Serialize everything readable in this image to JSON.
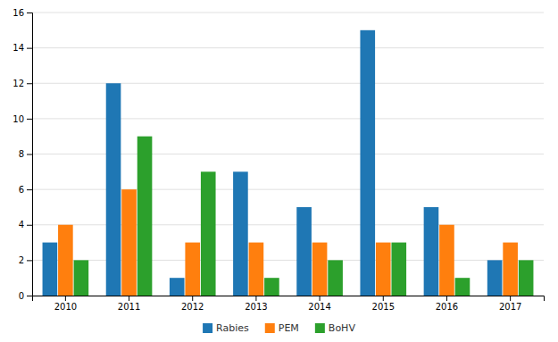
{
  "chart_data": {
    "type": "bar",
    "categories": [
      "2010",
      "2011",
      "2012",
      "2013",
      "2014",
      "2015",
      "2016",
      "2017"
    ],
    "series": [
      {
        "name": "Rabies",
        "values": [
          3,
          12,
          1,
          7,
          5,
          15,
          5,
          2
        ]
      },
      {
        "name": "PEM",
        "values": [
          4,
          6,
          3,
          3,
          3,
          3,
          4,
          3
        ]
      },
      {
        "name": "BoHV",
        "values": [
          2,
          9,
          7,
          1,
          2,
          3,
          1,
          2
        ]
      }
    ],
    "ylim": [
      0,
      16
    ],
    "yticks": [
      0,
      2,
      4,
      6,
      8,
      10,
      12,
      14,
      16
    ],
    "grid": true,
    "legend": "bottom"
  }
}
